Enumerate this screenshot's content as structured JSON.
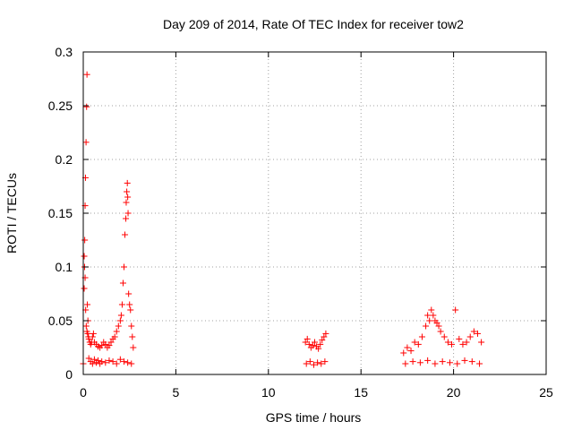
{
  "chart_data": {
    "type": "scatter",
    "title": "Day 209 of 2014, Rate Of TEC Index for receiver tow2",
    "xlabel": "GPS time / hours",
    "ylabel": "ROTI / TECUs",
    "xlim": [
      0,
      25
    ],
    "ylim": [
      0,
      0.3
    ],
    "xticks": [
      0,
      5,
      10,
      15,
      20,
      25
    ],
    "yticks": [
      0,
      0.05,
      0.1,
      0.15,
      0.2,
      0.25,
      0.3
    ],
    "xtick_labels": [
      "0",
      "5",
      "10",
      "15",
      "20",
      "25"
    ],
    "ytick_labels": [
      "0",
      "0.05",
      "0.1",
      "0.15",
      "0.2",
      "0.25",
      "0.3"
    ],
    "grid": true,
    "marker": "+",
    "color": "#ff0000",
    "series": [
      {
        "name": "ROTI",
        "x": [
          0.0,
          0.05,
          0.08,
          0.1,
          0.12,
          0.15,
          0.18,
          0.2,
          0.22,
          0.25,
          0.05,
          0.07,
          0.1,
          0.13,
          0.16,
          0.2,
          0.24,
          0.28,
          0.3,
          0.35,
          0.4,
          0.45,
          0.5,
          0.55,
          0.6,
          0.7,
          0.8,
          0.9,
          1.0,
          1.1,
          1.2,
          1.3,
          1.4,
          1.5,
          1.6,
          1.7,
          1.8,
          1.9,
          2.0,
          2.05,
          2.1,
          2.15,
          2.2,
          2.25,
          2.3,
          2.32,
          2.35,
          2.38,
          2.4,
          2.42,
          2.45,
          2.5,
          2.55,
          2.6,
          2.65,
          2.7,
          0.3,
          0.4,
          0.5,
          0.6,
          0.7,
          0.8,
          0.9,
          1.0,
          1.2,
          1.4,
          1.6,
          1.8,
          2.0,
          2.2,
          2.4,
          2.6,
          12.0,
          12.1,
          12.2,
          12.3,
          12.4,
          12.5,
          12.6,
          12.7,
          12.8,
          12.9,
          13.0,
          13.1,
          12.05,
          12.25,
          12.45,
          12.65,
          12.85,
          13.05,
          17.3,
          17.5,
          17.7,
          17.9,
          18.1,
          18.3,
          18.5,
          18.6,
          18.7,
          18.8,
          18.9,
          19.0,
          19.1,
          19.2,
          19.3,
          19.5,
          19.7,
          19.9,
          20.1,
          20.3,
          20.5,
          20.7,
          20.9,
          21.1,
          21.3,
          21.5,
          17.4,
          17.8,
          18.2,
          18.6,
          19.0,
          19.4,
          19.8,
          20.2,
          20.6,
          21.0,
          21.4
        ],
        "y": [
          0.01,
          0.08,
          0.125,
          0.157,
          0.183,
          0.216,
          0.249,
          0.279,
          0.065,
          0.05,
          0.11,
          0.1,
          0.09,
          0.06,
          0.045,
          0.04,
          0.038,
          0.035,
          0.033,
          0.03,
          0.028,
          0.03,
          0.035,
          0.038,
          0.03,
          0.028,
          0.026,
          0.025,
          0.027,
          0.03,
          0.028,
          0.025,
          0.027,
          0.03,
          0.033,
          0.035,
          0.04,
          0.045,
          0.05,
          0.055,
          0.065,
          0.085,
          0.1,
          0.13,
          0.145,
          0.16,
          0.17,
          0.178,
          0.165,
          0.15,
          0.075,
          0.065,
          0.06,
          0.045,
          0.035,
          0.025,
          0.015,
          0.012,
          0.01,
          0.014,
          0.011,
          0.013,
          0.01,
          0.012,
          0.011,
          0.013,
          0.012,
          0.01,
          0.014,
          0.012,
          0.011,
          0.01,
          0.03,
          0.033,
          0.028,
          0.025,
          0.027,
          0.03,
          0.026,
          0.024,
          0.028,
          0.032,
          0.035,
          0.038,
          0.01,
          0.012,
          0.009,
          0.011,
          0.01,
          0.012,
          0.02,
          0.025,
          0.022,
          0.03,
          0.028,
          0.035,
          0.045,
          0.055,
          0.05,
          0.06,
          0.055,
          0.05,
          0.048,
          0.045,
          0.04,
          0.035,
          0.03,
          0.028,
          0.06,
          0.033,
          0.028,
          0.03,
          0.035,
          0.04,
          0.038,
          0.03,
          0.01,
          0.012,
          0.011,
          0.013,
          0.01,
          0.012,
          0.011,
          0.01,
          0.013,
          0.012,
          0.01
        ]
      }
    ]
  }
}
